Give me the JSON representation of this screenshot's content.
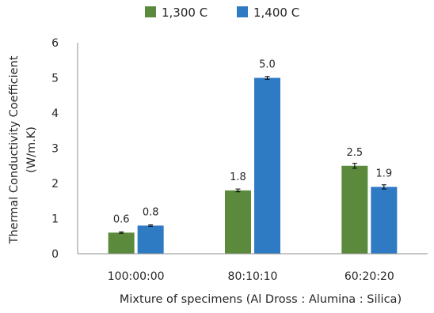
{
  "chart_data": {
    "type": "bar",
    "categories": [
      "100:00:00",
      "80:10:10",
      "60:20:20"
    ],
    "series": [
      {
        "name": "1,300 C",
        "color": "#5B8A3C",
        "values": [
          0.6,
          1.8,
          2.5
        ],
        "errors": [
          0.02,
          0.04,
          0.07
        ],
        "labels": [
          "0.6",
          "1.8",
          "2.5"
        ]
      },
      {
        "name": "1,400 C",
        "color": "#2E7BC4",
        "values": [
          0.8,
          5.0,
          1.9
        ],
        "errors": [
          0.02,
          0.04,
          0.06
        ],
        "labels": [
          "0.8",
          "5.0",
          "1.9"
        ]
      }
    ],
    "title": "",
    "xlabel": "Mixture of specimens (Al Dross : Alumina : Silica)",
    "ylabel_lines": [
      "Thermal Conductivity Coefficient",
      "(W/m.K)"
    ],
    "ylim": [
      0,
      6
    ],
    "yticks": [
      0,
      1,
      2,
      3,
      4,
      5,
      6
    ],
    "grid": false,
    "legend_position": "top-center"
  }
}
